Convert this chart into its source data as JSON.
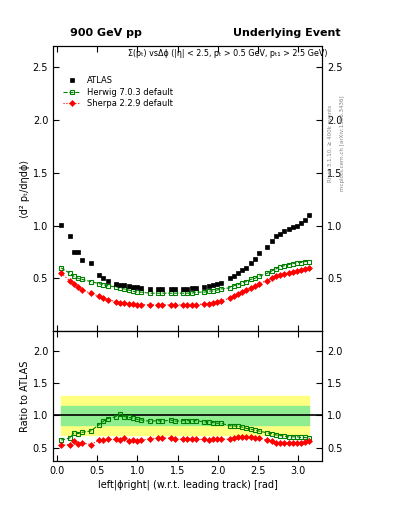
{
  "title_left": "900 GeV pp",
  "title_right": "Underlying Event",
  "annotation": "Σ(pₜ) vsΔϕ (|η| < 2.5, pₜ > 0.5 GeV, pₜ₁ > 2.5 GeV)",
  "ylabel_main": "⟨d² pₜ/dηdϕ⟩",
  "ylabel_ratio": "Ratio to ATLAS",
  "xlabel": "left|ϕright| (w.r.t. leading track) [rad]",
  "right_label": "Rivet 3.1.10, ≥ 400k events",
  "right_label2": "mcplots.cern.ch [arXiv:1306.3436]",
  "ylim_main": [
    0.0,
    2.7
  ],
  "ylim_ratio": [
    0.3,
    2.3
  ],
  "yticks_main": [
    0.5,
    1.0,
    1.5,
    2.0,
    2.5
  ],
  "yticks_ratio": [
    0.5,
    1.0,
    1.5,
    2.0
  ],
  "atlas_x": [
    0.05,
    0.157,
    0.209,
    0.262,
    0.314,
    0.419,
    0.524,
    0.576,
    0.628,
    0.733,
    0.785,
    0.838,
    0.89,
    0.942,
    0.995,
    1.047,
    1.152,
    1.257,
    1.309,
    1.414,
    1.466,
    1.571,
    1.623,
    1.676,
    1.728,
    1.833,
    1.885,
    1.938,
    1.99,
    2.042,
    2.147,
    2.199,
    2.252,
    2.304,
    2.356,
    2.409,
    2.461,
    2.513,
    2.618,
    2.67,
    2.723,
    2.775,
    2.827,
    2.88,
    2.932,
    2.985,
    3.037,
    3.089,
    3.141
  ],
  "atlas_y": [
    1.01,
    0.9,
    0.75,
    0.75,
    0.67,
    0.65,
    0.53,
    0.5,
    0.48,
    0.45,
    0.44,
    0.44,
    0.43,
    0.42,
    0.42,
    0.41,
    0.4,
    0.4,
    0.4,
    0.4,
    0.4,
    0.4,
    0.4,
    0.41,
    0.41,
    0.42,
    0.43,
    0.44,
    0.45,
    0.46,
    0.5,
    0.52,
    0.55,
    0.58,
    0.6,
    0.65,
    0.68,
    0.74,
    0.8,
    0.85,
    0.9,
    0.92,
    0.95,
    0.97,
    0.99,
    1.0,
    1.02,
    1.05,
    1.1
  ],
  "herwig_x": [
    0.05,
    0.157,
    0.209,
    0.262,
    0.314,
    0.419,
    0.524,
    0.576,
    0.628,
    0.733,
    0.785,
    0.838,
    0.89,
    0.942,
    0.995,
    1.047,
    1.152,
    1.257,
    1.309,
    1.414,
    1.466,
    1.571,
    1.623,
    1.676,
    1.728,
    1.833,
    1.885,
    1.938,
    1.99,
    2.042,
    2.147,
    2.199,
    2.252,
    2.304,
    2.356,
    2.409,
    2.461,
    2.513,
    2.618,
    2.67,
    2.723,
    2.775,
    2.827,
    2.88,
    2.932,
    2.985,
    3.037,
    3.089,
    3.141
  ],
  "herwig_y": [
    0.6,
    0.55,
    0.52,
    0.5,
    0.49,
    0.47,
    0.45,
    0.44,
    0.43,
    0.42,
    0.41,
    0.4,
    0.39,
    0.38,
    0.37,
    0.37,
    0.36,
    0.36,
    0.36,
    0.36,
    0.36,
    0.36,
    0.36,
    0.36,
    0.37,
    0.37,
    0.38,
    0.38,
    0.39,
    0.4,
    0.41,
    0.43,
    0.44,
    0.46,
    0.47,
    0.49,
    0.5,
    0.52,
    0.55,
    0.57,
    0.59,
    0.61,
    0.62,
    0.63,
    0.64,
    0.65,
    0.65,
    0.66,
    0.66
  ],
  "sherpa_x": [
    0.05,
    0.157,
    0.209,
    0.262,
    0.314,
    0.419,
    0.524,
    0.576,
    0.628,
    0.733,
    0.785,
    0.838,
    0.89,
    0.942,
    0.995,
    1.047,
    1.152,
    1.257,
    1.309,
    1.414,
    1.466,
    1.571,
    1.623,
    1.676,
    1.728,
    1.833,
    1.885,
    1.938,
    1.99,
    2.042,
    2.147,
    2.199,
    2.252,
    2.304,
    2.356,
    2.409,
    2.461,
    2.513,
    2.618,
    2.67,
    2.723,
    2.775,
    2.827,
    2.88,
    2.932,
    2.985,
    3.037,
    3.089,
    3.141
  ],
  "sherpa_y": [
    0.55,
    0.48,
    0.45,
    0.42,
    0.39,
    0.36,
    0.33,
    0.31,
    0.3,
    0.28,
    0.27,
    0.27,
    0.26,
    0.26,
    0.25,
    0.25,
    0.25,
    0.25,
    0.25,
    0.25,
    0.25,
    0.25,
    0.25,
    0.25,
    0.25,
    0.26,
    0.26,
    0.27,
    0.28,
    0.29,
    0.31,
    0.33,
    0.35,
    0.37,
    0.39,
    0.41,
    0.43,
    0.45,
    0.48,
    0.5,
    0.52,
    0.53,
    0.54,
    0.55,
    0.56,
    0.57,
    0.58,
    0.59,
    0.6
  ],
  "herwig_ratio_y": [
    0.62,
    0.65,
    0.73,
    0.72,
    0.74,
    0.76,
    0.86,
    0.91,
    0.95,
    0.98,
    1.02,
    0.98,
    0.97,
    0.96,
    0.94,
    0.93,
    0.91,
    0.92,
    0.91,
    0.93,
    0.91,
    0.92,
    0.92,
    0.91,
    0.92,
    0.9,
    0.9,
    0.89,
    0.88,
    0.88,
    0.84,
    0.84,
    0.83,
    0.82,
    0.8,
    0.79,
    0.77,
    0.76,
    0.73,
    0.72,
    0.7,
    0.69,
    0.68,
    0.67,
    0.67,
    0.67,
    0.66,
    0.66,
    0.65
  ],
  "sherpa_ratio_y": [
    0.54,
    0.55,
    0.6,
    0.56,
    0.58,
    0.55,
    0.62,
    0.62,
    0.63,
    0.63,
    0.62,
    0.65,
    0.61,
    0.62,
    0.61,
    0.62,
    0.64,
    0.65,
    0.65,
    0.65,
    0.64,
    0.63,
    0.63,
    0.63,
    0.63,
    0.63,
    0.62,
    0.63,
    0.63,
    0.64,
    0.63,
    0.65,
    0.66,
    0.66,
    0.67,
    0.66,
    0.65,
    0.65,
    0.62,
    0.6,
    0.58,
    0.58,
    0.58,
    0.57,
    0.57,
    0.58,
    0.58,
    0.59,
    0.61
  ],
  "band_green_lo": [
    0.85,
    0.85,
    0.85,
    0.85,
    0.85,
    0.85,
    0.85,
    0.85,
    0.85,
    0.85,
    0.85,
    0.85,
    0.85,
    0.85,
    0.85,
    0.85,
    0.85,
    0.85,
    0.85,
    0.85,
    0.85,
    0.85,
    0.85,
    0.85,
    0.85,
    0.85,
    0.85,
    0.85,
    0.85,
    0.85,
    0.85,
    0.85,
    0.85,
    0.85,
    0.85,
    0.85,
    0.85,
    0.85,
    0.85,
    0.85,
    0.85,
    0.85,
    0.85,
    0.85,
    0.85,
    0.85,
    0.85,
    0.85,
    0.85
  ],
  "band_green_hi": [
    1.15,
    1.15,
    1.15,
    1.15,
    1.15,
    1.15,
    1.15,
    1.15,
    1.15,
    1.15,
    1.15,
    1.15,
    1.15,
    1.15,
    1.15,
    1.15,
    1.15,
    1.15,
    1.15,
    1.15,
    1.15,
    1.15,
    1.15,
    1.15,
    1.15,
    1.15,
    1.15,
    1.15,
    1.15,
    1.15,
    1.15,
    1.15,
    1.15,
    1.15,
    1.15,
    1.15,
    1.15,
    1.15,
    1.15,
    1.15,
    1.15,
    1.15,
    1.15,
    1.15,
    1.15,
    1.15,
    1.15,
    1.15,
    1.15
  ],
  "band_yellow_lo": [
    0.7,
    0.7,
    0.7,
    0.7,
    0.7,
    0.7,
    0.7,
    0.7,
    0.7,
    0.7,
    0.7,
    0.7,
    0.7,
    0.7,
    0.7,
    0.7,
    0.7,
    0.7,
    0.7,
    0.7,
    0.7,
    0.7,
    0.7,
    0.7,
    0.7,
    0.7,
    0.7,
    0.7,
    0.7,
    0.7,
    0.7,
    0.7,
    0.7,
    0.7,
    0.7,
    0.7,
    0.7,
    0.7,
    0.7,
    0.7,
    0.7,
    0.7,
    0.7,
    0.7,
    0.7,
    0.7,
    0.7,
    0.7,
    0.7
  ],
  "band_yellow_hi": [
    1.3,
    1.3,
    1.3,
    1.3,
    1.3,
    1.3,
    1.3,
    1.3,
    1.3,
    1.3,
    1.3,
    1.3,
    1.3,
    1.3,
    1.3,
    1.3,
    1.3,
    1.3,
    1.3,
    1.3,
    1.3,
    1.3,
    1.3,
    1.3,
    1.3,
    1.3,
    1.3,
    1.3,
    1.3,
    1.3,
    1.3,
    1.3,
    1.3,
    1.3,
    1.3,
    1.3,
    1.3,
    1.3,
    1.3,
    1.3,
    1.3,
    1.3,
    1.3,
    1.3,
    1.3,
    1.3,
    1.3,
    1.3,
    1.3
  ],
  "atlas_color": "#000000",
  "herwig_color": "#008000",
  "sherpa_color": "#ff0000",
  "band_green_color": "#90ee90",
  "band_yellow_color": "#ffff80",
  "bg_color": "#ffffff"
}
